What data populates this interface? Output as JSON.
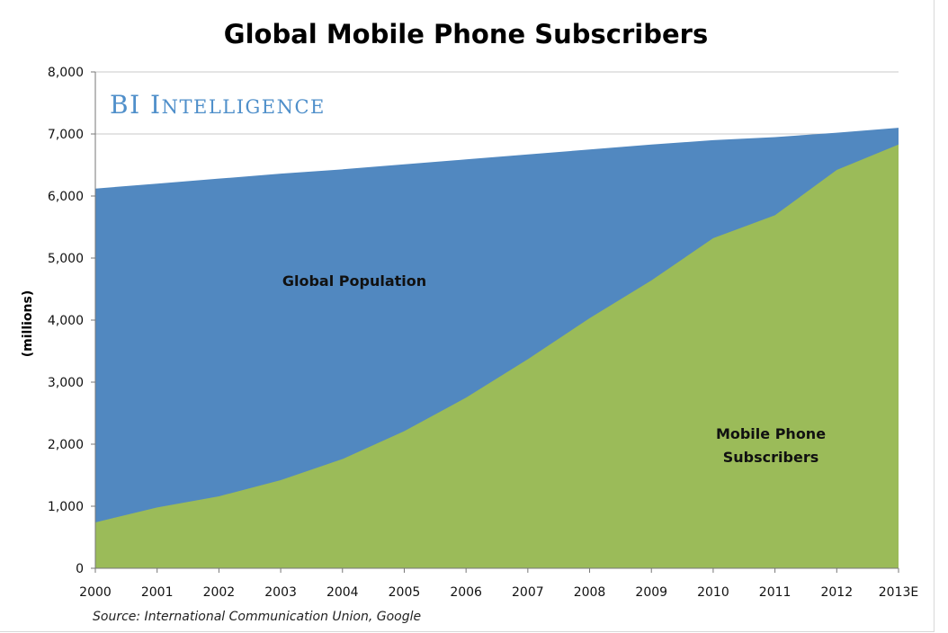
{
  "chart_data": {
    "type": "area",
    "title": "Global Mobile Phone Subscribers",
    "ylabel": "(millions)",
    "xlabel": "",
    "ylim": [
      0,
      8000
    ],
    "yticks": [
      0,
      1000,
      2000,
      3000,
      4000,
      5000,
      6000,
      7000,
      8000
    ],
    "ytick_labels": [
      "0",
      "1,000",
      "2,000",
      "3,000",
      "4,000",
      "5,000",
      "6,000",
      "7,000",
      "8,000"
    ],
    "categories": [
      "2000",
      "2001",
      "2002",
      "2003",
      "2004",
      "2005",
      "2006",
      "2007",
      "2008",
      "2009",
      "2010",
      "2011",
      "2012",
      "2013E"
    ],
    "series": [
      {
        "name": "Global Population",
        "label": "Global Population",
        "color": "#5188c0",
        "values": [
          6120,
          6200,
          6280,
          6360,
          6430,
          6510,
          6590,
          6670,
          6750,
          6830,
          6900,
          6950,
          7020,
          7100
        ]
      },
      {
        "name": "Mobile Phone Subscribers",
        "label_lines": [
          "Mobile Phone",
          "Subscribers"
        ],
        "color": "#9bbb59",
        "values": [
          740,
          980,
          1160,
          1420,
          1760,
          2210,
          2750,
          3370,
          4030,
          4640,
          5320,
          5690,
          6420,
          6830
        ]
      }
    ],
    "grid": true,
    "grid_color": "#c8c8c8",
    "brand": "BI Intelligence",
    "source": "Source: International Communication Union, Google"
  }
}
